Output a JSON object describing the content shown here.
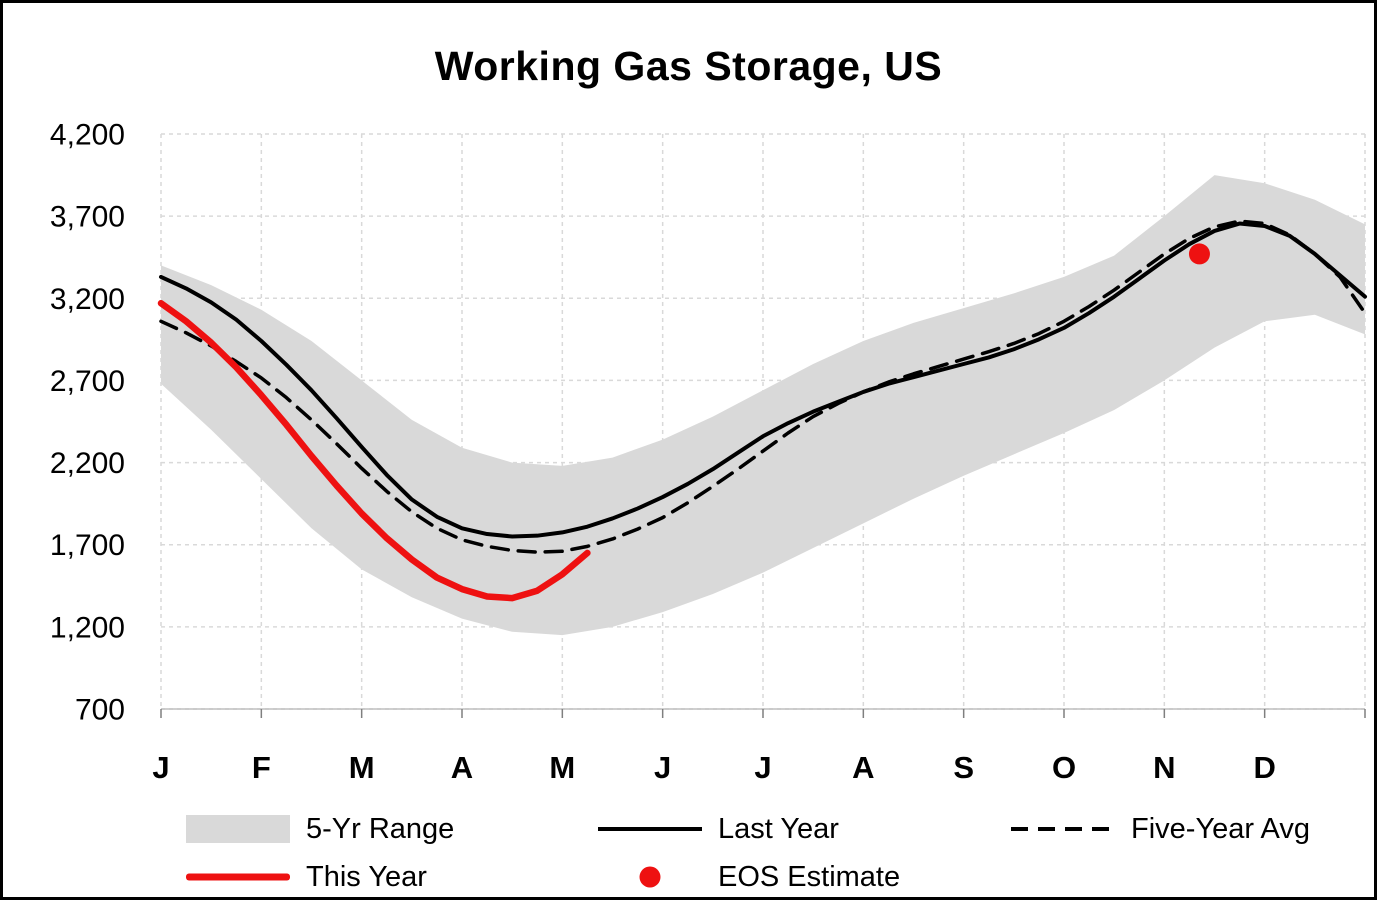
{
  "colors": {
    "range": "#d9d9d9",
    "grid": "#d9d9d9",
    "red": "#ee1111",
    "line": "#000000",
    "text": "#000000"
  },
  "legend": {
    "items": [
      {
        "label": "5-Yr Range",
        "swatch": "band"
      },
      {
        "label": "Last Year",
        "swatch": "line-solid"
      },
      {
        "label": "Five-Year Avg",
        "swatch": "line-dashed"
      },
      {
        "label": "This Year",
        "swatch": "line-thick-red"
      },
      {
        "label": "EOS Estimate",
        "swatch": "dot-red"
      }
    ]
  },
  "chart_data": {
    "type": "line",
    "title": "Working Gas Storage, US",
    "x_axis": {
      "months": [
        "J",
        "F",
        "M",
        "A",
        "M",
        "J",
        "J",
        "A",
        "S",
        "O",
        "N",
        "D"
      ],
      "range": [
        0,
        12
      ]
    },
    "y_axis": {
      "ticks": [
        700,
        1200,
        1700,
        2200,
        2700,
        3200,
        3700,
        4200
      ],
      "range": [
        700,
        4200
      ]
    },
    "band": {
      "name": "5-Yr Range",
      "color": "#d9d9d9",
      "x_start": 0,
      "x_step": 0.5,
      "upper": [
        3400,
        3280,
        3130,
        2940,
        2700,
        2460,
        2290,
        2200,
        2180,
        2230,
        2340,
        2480,
        2640,
        2800,
        2940,
        3050,
        3140,
        3230,
        3330,
        3460,
        3700,
        3950,
        3900,
        3800,
        3650
      ],
      "lower": [
        2680,
        2400,
        2100,
        1800,
        1550,
        1380,
        1250,
        1170,
        1150,
        1200,
        1290,
        1400,
        1530,
        1680,
        1830,
        1980,
        2120,
        2250,
        2380,
        2520,
        2700,
        2900,
        3060,
        3100,
        2980
      ]
    },
    "series": [
      {
        "name": "Last Year",
        "color": "#000000",
        "style": "solid",
        "width": 4,
        "x_start": 0,
        "x_step": 0.25,
        "values": [
          3330,
          3260,
          3175,
          3070,
          2940,
          2795,
          2640,
          2470,
          2295,
          2125,
          1975,
          1870,
          1800,
          1765,
          1750,
          1755,
          1775,
          1810,
          1860,
          1920,
          1990,
          2070,
          2160,
          2260,
          2360,
          2440,
          2510,
          2570,
          2630,
          2680,
          2720,
          2760,
          2800,
          2840,
          2890,
          2950,
          3020,
          3110,
          3210,
          3320,
          3430,
          3530,
          3610,
          3655,
          3640,
          3580,
          3470,
          3340,
          3210
        ]
      },
      {
        "name": "Five-Year Avg",
        "color": "#000000",
        "style": "dashed",
        "width": 3.5,
        "x_start": 0,
        "x_step": 0.25,
        "values": [
          3060,
          2990,
          2910,
          2815,
          2715,
          2595,
          2460,
          2315,
          2165,
          2025,
          1900,
          1800,
          1730,
          1690,
          1665,
          1655,
          1660,
          1690,
          1735,
          1795,
          1865,
          1955,
          2055,
          2160,
          2270,
          2380,
          2480,
          2560,
          2630,
          2690,
          2740,
          2785,
          2830,
          2875,
          2925,
          2985,
          3060,
          3150,
          3250,
          3360,
          3470,
          3565,
          3635,
          3670,
          3655,
          3585,
          3470,
          3330,
          3110
        ]
      },
      {
        "name": "This Year",
        "color": "#ee1111",
        "style": "solid",
        "width": 6.5,
        "x_start": 0,
        "x_step": 0.25,
        "values": [
          3170,
          3060,
          2930,
          2780,
          2610,
          2430,
          2240,
          2060,
          1890,
          1740,
          1610,
          1500,
          1430,
          1385,
          1375,
          1420,
          1520,
          1650
        ]
      }
    ],
    "point": {
      "name": "EOS Estimate",
      "color": "#ee1111",
      "x": 10.35,
      "value": 3470
    }
  }
}
